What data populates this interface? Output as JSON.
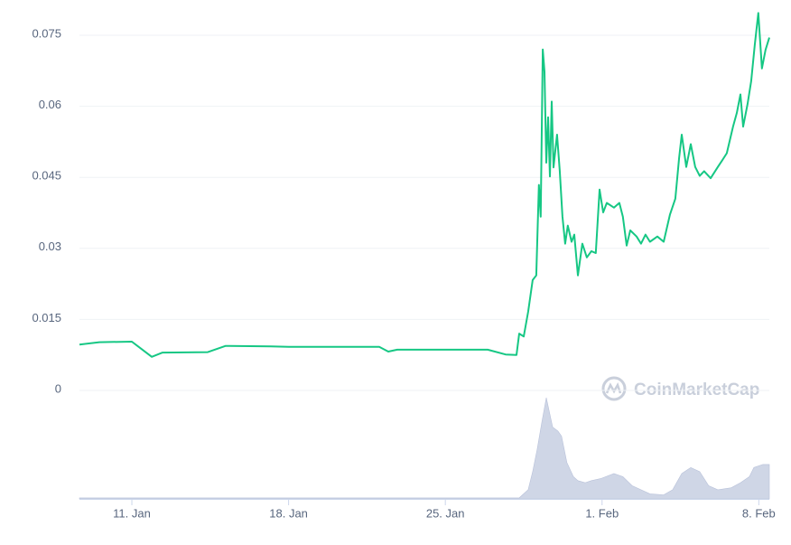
{
  "chart_data": {
    "type": "line",
    "watermark": "CoinMarketCap",
    "x": [
      8.66,
      9.55,
      11.0,
      11.89,
      12.37,
      14.39,
      15.19,
      17.21,
      18.01,
      22.05,
      22.45,
      22.85,
      26.89,
      27.69,
      28.18,
      28.3,
      28.5,
      28.7,
      28.9,
      29.06,
      29.18,
      29.26,
      29.35,
      29.43,
      29.51,
      29.59,
      29.67,
      29.75,
      29.83,
      29.99,
      30.11,
      30.23,
      30.35,
      30.47,
      30.64,
      30.76,
      30.92,
      31.12,
      31.32,
      31.52,
      31.72,
      31.89,
      32.05,
      32.21,
      32.53,
      32.77,
      32.93,
      33.1,
      33.26,
      33.54,
      33.74,
      33.94,
      34.14,
      34.47,
      34.75,
      35.03,
      35.27,
      35.44,
      35.56,
      35.76,
      35.96,
      36.16,
      36.36,
      36.56,
      36.85,
      37.17,
      37.37,
      37.57,
      37.85,
      38.02,
      38.18,
      38.3,
      38.5,
      38.66,
      38.82,
      38.98,
      39.14,
      39.3,
      39.47
    ],
    "series": [
      {
        "color": "#16c784",
        "values": [
          0.0097,
          0.0102,
          0.0103,
          0.0071,
          0.008,
          0.0081,
          0.0094,
          0.0093,
          0.0092,
          0.0092,
          0.0082,
          0.0086,
          0.0086,
          0.0076,
          0.0075,
          0.012,
          0.0114,
          0.0166,
          0.0233,
          0.0243,
          0.0434,
          0.0367,
          0.072,
          0.0673,
          0.0481,
          0.0577,
          0.0452,
          0.061,
          0.0471,
          0.054,
          0.0464,
          0.0367,
          0.031,
          0.0348,
          0.0314,
          0.0329,
          0.0243,
          0.031,
          0.0281,
          0.0294,
          0.029,
          0.0424,
          0.0376,
          0.0396,
          0.0386,
          0.0396,
          0.0367,
          0.0306,
          0.0338,
          0.0325,
          0.031,
          0.0329,
          0.0314,
          0.0325,
          0.0314,
          0.0371,
          0.0405,
          0.0491,
          0.054,
          0.0472,
          0.052,
          0.0472,
          0.0453,
          0.0463,
          0.0448,
          0.0472,
          0.0486,
          0.0501,
          0.0557,
          0.0586,
          0.0625,
          0.0557,
          0.0605,
          0.0653,
          0.073,
          0.0797,
          0.068,
          0.0719,
          0.0745
        ]
      }
    ],
    "volume": {
      "color": "#cfd6e6",
      "axis": "y2",
      "x": [
        8.66,
        28.1,
        28.3,
        28.7,
        28.9,
        29.1,
        29.31,
        29.51,
        29.79,
        30.03,
        30.19,
        30.43,
        30.72,
        30.92,
        31.24,
        31.52,
        31.93,
        32.53,
        32.93,
        33.34,
        33.74,
        34.14,
        34.75,
        35.15,
        35.56,
        35.96,
        36.36,
        36.76,
        37.17,
        37.77,
        38.18,
        38.58,
        38.78,
        39.18,
        39.47
      ],
      "values": [
        1,
        1,
        1,
        9,
        27,
        49,
        76,
        100,
        71,
        67,
        62,
        36,
        22,
        18,
        16,
        18,
        20,
        25,
        22,
        13,
        9,
        5,
        4,
        9,
        25,
        31,
        27,
        13,
        9,
        11,
        16,
        22,
        31,
        34,
        34
      ]
    },
    "xlim": [
      8.66,
      39.47
    ],
    "xticks": [
      {
        "value": 11,
        "label": "11. Jan"
      },
      {
        "value": 18,
        "label": "18. Jan"
      },
      {
        "value": 25,
        "label": "25. Jan"
      },
      {
        "value": 32,
        "label": "1. Feb"
      },
      {
        "value": 39,
        "label": "8. Feb"
      }
    ],
    "ylim": [
      0,
      0.075
    ],
    "yticks": [
      0,
      0.015,
      0.03,
      0.045,
      0.06,
      0.075
    ],
    "y2lim": [
      0,
      100
    ],
    "grid": true
  }
}
